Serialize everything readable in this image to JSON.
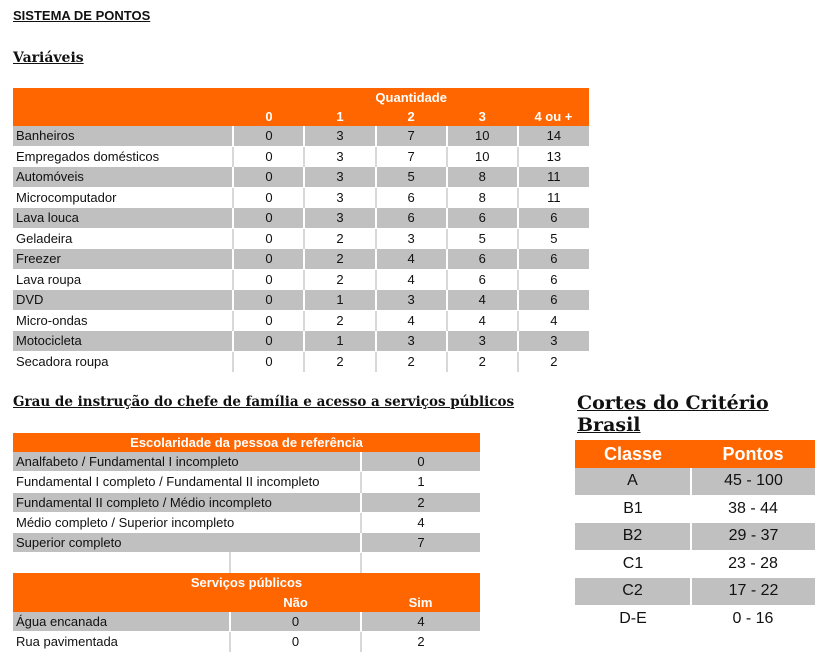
{
  "title": "SISTEMA DE PONTOS",
  "variaveis": {
    "heading": "Variáveis",
    "group_header": "Quantidade",
    "columns": [
      "0",
      "1",
      "2",
      "3",
      "4 ou +"
    ],
    "rows": [
      {
        "label": "Banheiros",
        "values": [
          "0",
          "3",
          "7",
          "10",
          "14"
        ]
      },
      {
        "label": "Empregados domésticos",
        "values": [
          "0",
          "3",
          "7",
          "10",
          "13"
        ]
      },
      {
        "label": "Automóveis",
        "values": [
          "0",
          "3",
          "5",
          "8",
          "11"
        ]
      },
      {
        "label": "Microcomputador",
        "values": [
          "0",
          "3",
          "6",
          "8",
          "11"
        ]
      },
      {
        "label": "Lava louca",
        "values": [
          "0",
          "3",
          "6",
          "6",
          "6"
        ]
      },
      {
        "label": "Geladeira",
        "values": [
          "0",
          "2",
          "3",
          "5",
          "5"
        ]
      },
      {
        "label": "Freezer",
        "values": [
          "0",
          "2",
          "4",
          "6",
          "6"
        ]
      },
      {
        "label": "Lava roupa",
        "values": [
          "0",
          "2",
          "4",
          "6",
          "6"
        ]
      },
      {
        "label": "DVD",
        "values": [
          "0",
          "1",
          "3",
          "4",
          "6"
        ]
      },
      {
        "label": "Micro-ondas",
        "values": [
          "0",
          "2",
          "4",
          "4",
          "4"
        ]
      },
      {
        "label": "Motocicleta",
        "values": [
          "0",
          "1",
          "3",
          "3",
          "3"
        ]
      },
      {
        "label": "Secadora roupa",
        "values": [
          "0",
          "2",
          "2",
          "2",
          "2"
        ]
      }
    ]
  },
  "grau": {
    "heading": "Grau de instrução do chefe de família e acesso a serviços públicos",
    "escolaridade_header": "Escolaridade da pessoa de referência",
    "escolaridade": [
      {
        "label": "Analfabeto / Fundamental I incompleto",
        "value": "0"
      },
      {
        "label": "Fundamental I completo / Fundamental II incompleto",
        "value": "1"
      },
      {
        "label": "Fundamental II completo / Médio incompleto",
        "value": "2"
      },
      {
        "label": "Médio completo / Superior incompleto",
        "value": "4"
      },
      {
        "label": "Superior completo",
        "value": "7"
      }
    ],
    "servicos_header": "Serviços públicos",
    "servicos_columns": [
      "Não",
      "Sim"
    ],
    "servicos": [
      {
        "label": "Água encanada",
        "values": [
          "0",
          "4"
        ]
      },
      {
        "label": "Rua pavimentada",
        "values": [
          "0",
          "2"
        ]
      }
    ]
  },
  "cortes": {
    "heading": "Cortes do Critério Brasil",
    "columns": [
      "Classe",
      "Pontos"
    ],
    "rows": [
      {
        "classe": "A",
        "pontos": "45 - 100"
      },
      {
        "classe": "B1",
        "pontos": "38 - 44"
      },
      {
        "classe": "B2",
        "pontos": "29 - 37"
      },
      {
        "classe": "C1",
        "pontos": "23 - 28"
      },
      {
        "classe": "C2",
        "pontos": "17 - 22"
      },
      {
        "classe": "D-E",
        "pontos": "0 - 16"
      }
    ]
  },
  "colors": {
    "accent": "#ff6600",
    "row_gray": "#c0c0c0"
  }
}
